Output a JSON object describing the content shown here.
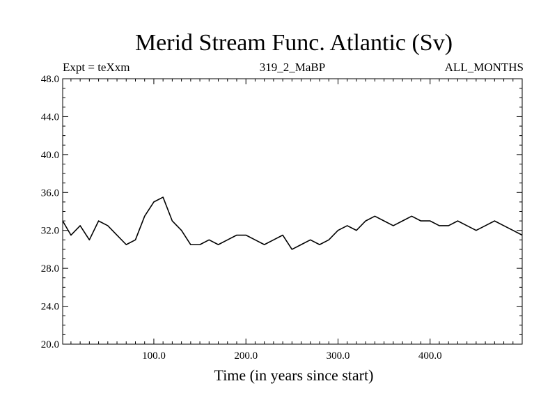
{
  "chart_data": {
    "type": "line",
    "title": "Merid Stream Func. Atlantic (Sv)",
    "subtitle_left": "Expt = teXxm",
    "subtitle_center": "319_2_MaBP",
    "subtitle_right": "ALL_MONTHS",
    "xlabel": "Time (in years since start)",
    "ylabel": "",
    "xlim": [
      1,
      500
    ],
    "ylim": [
      20.0,
      48.0
    ],
    "xticks": [
      100,
      200,
      300,
      400
    ],
    "xtick_labels": [
      "100.0",
      "200.0",
      "300.0",
      "400.0"
    ],
    "yticks": [
      20,
      24,
      28,
      32,
      36,
      40,
      44,
      48
    ],
    "ytick_labels": [
      "20.0",
      "24.0",
      "28.0",
      "32.0",
      "36.0",
      "40.0",
      "44.0",
      "48.0"
    ],
    "grid": false,
    "line_color": "#000000",
    "series": [
      {
        "x": [
          1,
          10,
          20,
          30,
          40,
          50,
          60,
          70,
          80,
          90,
          100,
          110,
          120,
          130,
          140,
          150,
          160,
          170,
          180,
          190,
          200,
          210,
          220,
          230,
          240,
          250,
          260,
          270,
          280,
          290,
          300,
          310,
          320,
          330,
          340,
          350,
          360,
          370,
          380,
          390,
          400,
          410,
          420,
          430,
          440,
          450,
          460,
          470,
          480,
          490,
          500
        ],
        "values": [
          33.0,
          31.5,
          32.5,
          31.0,
          33.0,
          32.5,
          31.5,
          30.5,
          31.0,
          33.5,
          35.0,
          35.5,
          33.0,
          32.0,
          30.5,
          30.5,
          31.0,
          30.5,
          31.0,
          31.5,
          31.5,
          31.0,
          30.5,
          31.0,
          31.5,
          30.0,
          30.5,
          31.0,
          30.5,
          31.0,
          32.0,
          32.5,
          32.0,
          33.0,
          33.5,
          33.0,
          32.5,
          33.0,
          33.5,
          33.0,
          33.0,
          32.5,
          32.5,
          33.0,
          32.5,
          32.0,
          32.5,
          33.0,
          32.5,
          32.0,
          31.5
        ]
      }
    ]
  }
}
